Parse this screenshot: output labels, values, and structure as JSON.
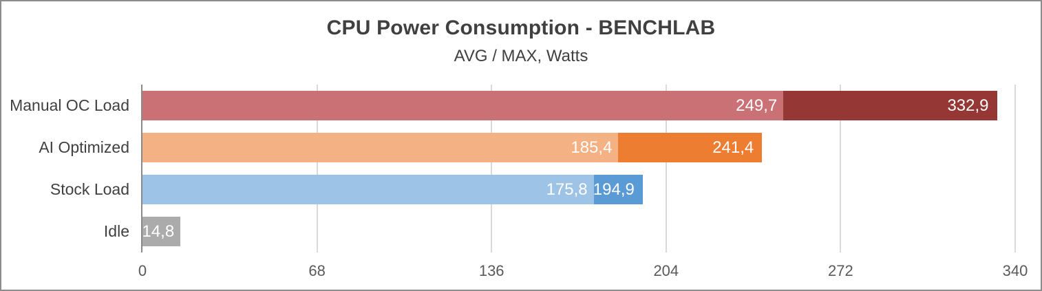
{
  "chart_data": {
    "type": "bar",
    "orientation": "horizontal",
    "title": "CPU Power Consumption - BENCHLAB",
    "subtitle": "AVG / MAX, Watts",
    "categories": [
      "Manual OC Load",
      "AI Optimized",
      "Stock Load",
      "Idle"
    ],
    "series": [
      {
        "name": "AVG",
        "values": [
          249.7,
          185.4,
          175.8,
          14.8
        ]
      },
      {
        "name": "MAX",
        "values": [
          332.9,
          241.4,
          194.9,
          null
        ]
      }
    ],
    "value_labels": [
      [
        "249,7",
        "332,9"
      ],
      [
        "185,4",
        "241,4"
      ],
      [
        "175,8",
        "194,9"
      ],
      [
        "14,8",
        null
      ]
    ],
    "xlim": [
      0,
      340
    ],
    "x_ticks": [
      0,
      68,
      136,
      204,
      272,
      340
    ],
    "x_tick_labels": [
      "0",
      "68",
      "136",
      "204",
      "272",
      "340"
    ],
    "grid": true,
    "legend_position": "none",
    "colors": {
      "avg": [
        "#ca7175",
        "#f4b183",
        "#9dc3e6",
        "#ababab"
      ],
      "max": [
        "#943735",
        "#ed7d31",
        "#5b9bd5",
        "#ababab"
      ]
    },
    "gridline_color": "#d9d9d9",
    "axis_line_color": "#898989",
    "frame_border_color": "#8c8c8c",
    "title_color": "#404040",
    "category_label_color": "#404040",
    "tick_label_color": "#595959",
    "bar_label_color": "#ffffff"
  }
}
